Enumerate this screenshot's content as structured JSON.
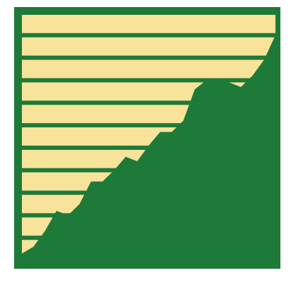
{
  "colors": {
    "background": "#ffffff",
    "frame": "#1e7a39",
    "area_fill": "#1e7a39",
    "above_fill": "#f8e39a",
    "band_line": "#1e7a39",
    "tick_label": "#2a2a2a"
  },
  "chart_data": {
    "type": "area",
    "title": "",
    "xlabel": "",
    "ylabel": "",
    "grid": true,
    "legend": "none",
    "ylim": [
      0,
      11
    ],
    "y_ticks": [
      1,
      2,
      3,
      4,
      5,
      6,
      7,
      8,
      9,
      10,
      11
    ],
    "y_tick_labels": [
      "",
      "",
      "",
      "",
      "",
      "",
      "",
      "",
      "",
      "",
      ""
    ],
    "x": [
      0,
      1,
      2,
      3,
      4,
      5,
      6,
      7,
      8,
      9,
      10,
      11,
      12,
      13,
      14,
      15,
      16,
      17,
      18,
      19,
      20,
      21,
      22
    ],
    "series": [
      {
        "values": [
          0.3,
          0.6,
          1.3,
          2.2,
          2.0,
          2.5,
          3.5,
          3.5,
          4.0,
          4.6,
          4.4,
          5.1,
          5.7,
          5.7,
          6.2,
          7.6,
          8.0,
          8.1,
          7.9,
          7.7,
          8.2,
          8.9,
          10.0
        ]
      }
    ]
  }
}
